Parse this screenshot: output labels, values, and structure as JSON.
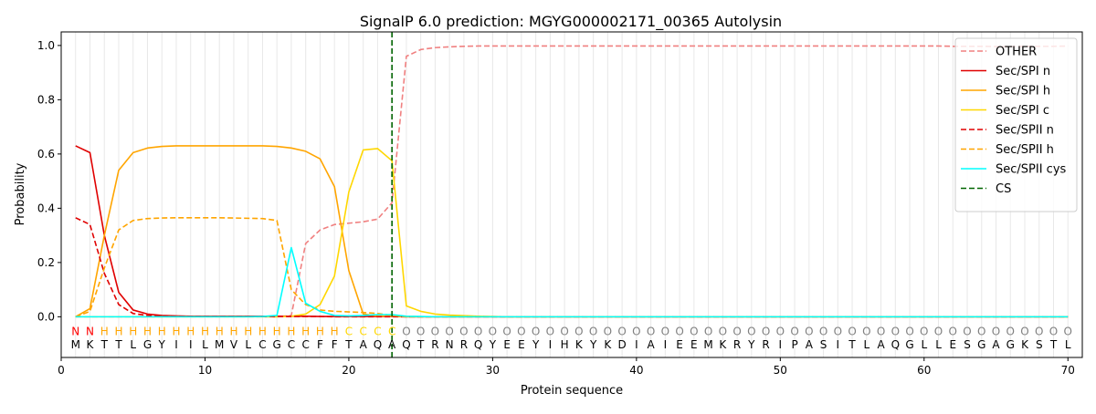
{
  "chart_data": {
    "type": "line",
    "title": "SignalP 6.0 prediction: MGYG000002171_00365 Autolysin",
    "xlabel": "Protein sequence",
    "ylabel": "Probability",
    "xlim": [
      0,
      71
    ],
    "ylim": [
      -0.15,
      1.05
    ],
    "xticks": [
      0,
      10,
      20,
      30,
      40,
      50,
      60,
      70
    ],
    "yticks": [
      0.0,
      0.2,
      0.4,
      0.6,
      0.8,
      1.0
    ],
    "vertical_grid": "every residue (light gray)",
    "legend_position": "top-right",
    "sequence": [
      "M",
      "K",
      "T",
      "T",
      "L",
      "G",
      "Y",
      "I",
      "I",
      "L",
      "M",
      "V",
      "L",
      "C",
      "G",
      "C",
      "C",
      "F",
      "F",
      "T",
      "A",
      "Q",
      "A",
      "Q",
      "T",
      "R",
      "N",
      "R",
      "Q",
      "Y",
      "E",
      "E",
      "Y",
      "I",
      "H",
      "K",
      "Y",
      "K",
      "D",
      "I",
      "A",
      "I",
      "E",
      "E",
      "M",
      "K",
      "R",
      "Y",
      "R",
      "I",
      "P",
      "A",
      "S",
      "I",
      "T",
      "L",
      "A",
      "Q",
      "G",
      "L",
      "L",
      "E",
      "S",
      "G",
      "A",
      "G",
      "K",
      "S",
      "T",
      "L"
    ],
    "labels": [
      "N",
      "N",
      "H",
      "H",
      "H",
      "H",
      "H",
      "H",
      "H",
      "H",
      "H",
      "H",
      "H",
      "H",
      "H",
      "H",
      "H",
      "H",
      "H",
      "C",
      "C",
      "C",
      "C",
      "O",
      "O",
      "O",
      "O",
      "O",
      "O",
      "O",
      "O",
      "O",
      "O",
      "O",
      "O",
      "O",
      "O",
      "O",
      "O",
      "O",
      "O",
      "O",
      "O",
      "O",
      "O",
      "O",
      "O",
      "O",
      "O",
      "O",
      "O",
      "O",
      "O",
      "O",
      "O",
      "O",
      "O",
      "O",
      "O",
      "O",
      "O",
      "O",
      "O",
      "O",
      "O",
      "O",
      "O",
      "O",
      "O",
      "O"
    ],
    "label_colors": {
      "N": "#ff0000",
      "H": "#ffa500",
      "C": "#ffd700",
      "O": "#808080"
    },
    "cs_position": 23,
    "series": [
      {
        "name": "OTHER",
        "color": "#f08080",
        "dash": "dashed",
        "values": [
          0,
          0,
          0,
          0,
          0,
          0,
          0,
          0,
          0,
          0,
          0,
          0,
          0,
          0,
          0,
          0.005,
          0.27,
          0.32,
          0.34,
          0.345,
          0.35,
          0.36,
          0.42,
          0.96,
          0.985,
          0.992,
          0.995,
          0.997,
          0.998,
          0.998,
          0.998,
          0.998,
          0.998,
          0.998,
          0.998,
          0.998,
          0.998,
          0.998,
          0.998,
          0.998,
          0.998,
          0.998,
          0.998,
          0.998,
          0.998,
          0.998,
          0.998,
          0.998,
          0.998,
          0.998,
          0.998,
          0.998,
          0.998,
          0.998,
          0.998,
          0.998,
          0.998,
          0.998,
          0.998,
          0.998,
          0.998,
          0.997,
          0.997,
          0.997,
          0.996,
          0.996,
          0.997,
          0.997,
          0.997,
          0.998
        ]
      },
      {
        "name": "Sec/SPI n",
        "color": "#e00000",
        "dash": "solid",
        "values": [
          0.63,
          0.605,
          0.3,
          0.09,
          0.025,
          0.01,
          0.005,
          0.003,
          0.002,
          0.002,
          0.002,
          0.002,
          0.002,
          0.002,
          0.002,
          0.002,
          0.002,
          0.001,
          0.001,
          0.001,
          0.001,
          0.001,
          0.001,
          0,
          0,
          0,
          0,
          0,
          0,
          0,
          0,
          0,
          0,
          0,
          0,
          0,
          0,
          0,
          0,
          0,
          0,
          0,
          0,
          0,
          0,
          0,
          0,
          0,
          0,
          0,
          0,
          0,
          0,
          0,
          0,
          0,
          0,
          0,
          0,
          0,
          0,
          0,
          0,
          0,
          0,
          0,
          0,
          0,
          0,
          0
        ]
      },
      {
        "name": "Sec/SPI h",
        "color": "#ffa500",
        "dash": "solid",
        "values": [
          0,
          0.03,
          0.3,
          0.54,
          0.605,
          0.622,
          0.628,
          0.63,
          0.63,
          0.63,
          0.63,
          0.63,
          0.63,
          0.63,
          0.628,
          0.622,
          0.61,
          0.582,
          0.48,
          0.17,
          0.01,
          0.003,
          0.002,
          0,
          0,
          0,
          0,
          0,
          0,
          0,
          0,
          0,
          0,
          0,
          0,
          0,
          0,
          0,
          0,
          0,
          0,
          0,
          0,
          0,
          0,
          0,
          0,
          0,
          0,
          0,
          0,
          0,
          0,
          0,
          0,
          0,
          0,
          0,
          0,
          0,
          0,
          0,
          0,
          0,
          0,
          0,
          0,
          0,
          0,
          0
        ]
      },
      {
        "name": "Sec/SPI c",
        "color": "#ffd700",
        "dash": "solid",
        "values": [
          0,
          0,
          0,
          0,
          0,
          0,
          0,
          0,
          0,
          0,
          0,
          0,
          0,
          0,
          0,
          0.002,
          0.01,
          0.045,
          0.15,
          0.46,
          0.615,
          0.62,
          0.575,
          0.04,
          0.02,
          0.01,
          0.006,
          0.004,
          0.002,
          0.001,
          0,
          0,
          0,
          0,
          0,
          0,
          0,
          0,
          0,
          0,
          0,
          0,
          0,
          0,
          0,
          0,
          0,
          0,
          0,
          0,
          0,
          0,
          0,
          0,
          0,
          0,
          0,
          0,
          0,
          0,
          0,
          0,
          0,
          0,
          0,
          0,
          0,
          0,
          0,
          0
        ]
      },
      {
        "name": "Sec/SPII n",
        "color": "#e00000",
        "dash": "dashed",
        "values": [
          0.365,
          0.34,
          0.16,
          0.045,
          0.012,
          0.005,
          0.002,
          0.001,
          0.001,
          0.001,
          0.001,
          0.001,
          0.001,
          0.001,
          0.001,
          0.001,
          0.001,
          0.001,
          0,
          0,
          0,
          0,
          0,
          0,
          0,
          0,
          0,
          0,
          0,
          0,
          0,
          0,
          0,
          0,
          0,
          0,
          0,
          0,
          0,
          0,
          0,
          0,
          0,
          0,
          0,
          0,
          0,
          0,
          0,
          0,
          0,
          0,
          0,
          0,
          0,
          0,
          0,
          0,
          0,
          0,
          0,
          0,
          0,
          0,
          0,
          0,
          0,
          0,
          0,
          0
        ]
      },
      {
        "name": "Sec/SPII h",
        "color": "#ffa500",
        "dash": "dashed",
        "values": [
          0,
          0.02,
          0.18,
          0.32,
          0.355,
          0.362,
          0.364,
          0.365,
          0.365,
          0.365,
          0.365,
          0.364,
          0.363,
          0.362,
          0.355,
          0.1,
          0.045,
          0.025,
          0.02,
          0.018,
          0.016,
          0.012,
          0.005,
          0,
          0,
          0,
          0,
          0,
          0,
          0,
          0,
          0,
          0,
          0,
          0,
          0,
          0,
          0,
          0,
          0,
          0,
          0,
          0,
          0,
          0,
          0,
          0,
          0,
          0,
          0,
          0,
          0,
          0,
          0,
          0,
          0,
          0,
          0,
          0,
          0,
          0,
          0,
          0,
          0,
          0,
          0,
          0,
          0,
          0,
          0
        ]
      },
      {
        "name": "Sec/SPII cys",
        "color": "#00ffff",
        "dash": "solid",
        "values": [
          0,
          0,
          0,
          0,
          0,
          0,
          0,
          0,
          0,
          0,
          0,
          0,
          0,
          0.001,
          0.005,
          0.255,
          0.05,
          0.02,
          0.005,
          0.003,
          0.005,
          0.008,
          0.008,
          0.002,
          0.001,
          0,
          0,
          0,
          0,
          0,
          0,
          0,
          0,
          0,
          0,
          0,
          0,
          0,
          0,
          0,
          0,
          0,
          0,
          0,
          0,
          0,
          0,
          0,
          0,
          0,
          0,
          0,
          0,
          0,
          0,
          0,
          0,
          0,
          0,
          0,
          0,
          0,
          0,
          0,
          0,
          0,
          0,
          0,
          0,
          0
        ]
      }
    ],
    "cs_legend": {
      "name": "CS",
      "color": "#006400",
      "dash": "dashed"
    }
  }
}
